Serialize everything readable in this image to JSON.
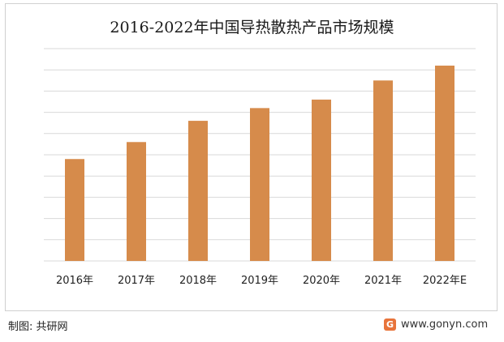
{
  "chart_data": {
    "type": "bar",
    "title": "2016-2022年中国导热散热产品市场规模",
    "categories": [
      "2016年",
      "2017年",
      "2018年",
      "2019年",
      "2020年",
      "2021年",
      "2022年E"
    ],
    "values": [
      4.8,
      5.6,
      6.6,
      7.2,
      7.6,
      8.5,
      9.2
    ],
    "ylim": [
      0,
      10
    ],
    "grid": true,
    "bar_color": "#d68b4b",
    "gridline_color": "#d9d9d9"
  },
  "footer": {
    "source": "制图: 共研网",
    "site": "www.gonyn.com",
    "logo_icon": "gonyn-logo-icon",
    "logo_letter": "G"
  }
}
